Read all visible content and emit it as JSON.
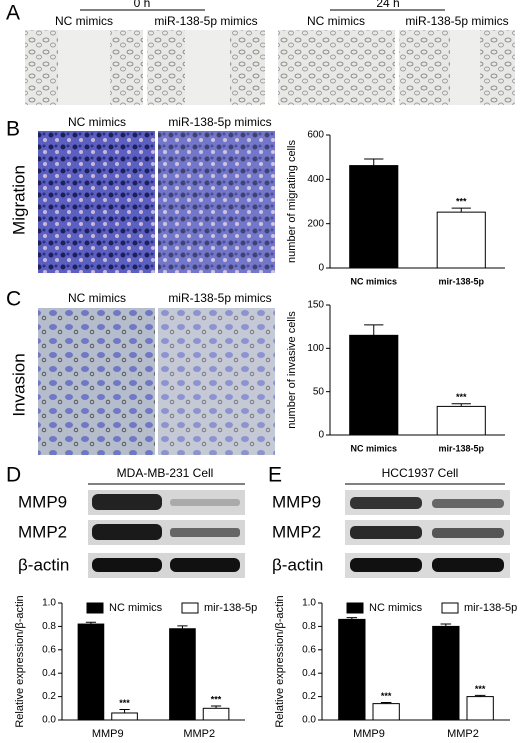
{
  "panels": {
    "A": {
      "letter": "A",
      "timepoints": [
        "0 h",
        "24 h"
      ],
      "labels": [
        "NC mimics",
        "miR-138-5p mimics",
        "NC mimics",
        "miR-138-5p mimics"
      ]
    },
    "B": {
      "letter": "B",
      "row_label": "Migration",
      "labels": [
        "NC mimics",
        "miR-138-5p mimics"
      ]
    },
    "C": {
      "letter": "C",
      "row_label": "Invasion",
      "labels": [
        "NC mimics",
        "miR-138-5p mimics"
      ]
    },
    "D": {
      "letter": "D",
      "cell_line": "MDA-MB-231 Cell",
      "blot_labels": [
        "MMP9",
        "MMP2",
        "β-actin"
      ]
    },
    "E": {
      "letter": "E",
      "cell_line": "HCC1937 Cell",
      "blot_labels": [
        "MMP9",
        "MMP2",
        "β-actin"
      ]
    }
  },
  "chart_data": [
    {
      "type": "bar",
      "ylabel": "number of migrating cells",
      "categories": [
        "NC mimics",
        "mir-138-5p"
      ],
      "ylim": [
        0,
        600
      ],
      "yticks": [
        0,
        200,
        400,
        600
      ],
      "series": [
        {
          "colors": [
            "#000000",
            "#ffffff"
          ],
          "values": [
            462,
            252
          ],
          "errors": [
            30,
            18
          ],
          "annotations": [
            null,
            "***"
          ]
        }
      ]
    },
    {
      "type": "bar",
      "ylabel": "number of invasive cells",
      "categories": [
        "NC mimics",
        "mir-138-5p"
      ],
      "ylim": [
        0,
        150
      ],
      "yticks": [
        0,
        50,
        100,
        150
      ],
      "series": [
        {
          "colors": [
            "#000000",
            "#ffffff"
          ],
          "values": [
            115,
            33
          ],
          "errors": [
            12,
            3
          ],
          "annotations": [
            null,
            "***"
          ]
        }
      ]
    },
    {
      "type": "bar",
      "ylabel": "Relative expression/β-actin",
      "categories": [
        "MMP9",
        "MMP2"
      ],
      "ylim": [
        0,
        1
      ],
      "yticks": [
        {
          "value": 0,
          "label": "0.0"
        },
        0.2,
        0.4,
        0.6,
        0.8,
        {
          "value": 1,
          "label": "1.0"
        }
      ],
      "series": [
        {
          "name": "NC mimics",
          "color": "#000000",
          "values": [
            0.82,
            0.78
          ],
          "errors": [
            0.015,
            0.025
          ]
        },
        {
          "name": "mir-138-5p",
          "color": "#ffffff",
          "values": [
            0.06,
            0.1
          ],
          "errors": [
            0.03,
            0.02
          ],
          "annotations": [
            "***",
            "***"
          ]
        }
      ]
    },
    {
      "type": "bar",
      "ylabel": "Relative expression/β-actin",
      "categories": [
        "MMP9",
        "MMP2"
      ],
      "ylim": [
        0,
        1
      ],
      "yticks": [
        {
          "value": 0,
          "label": "0.0"
        },
        0.2,
        0.4,
        0.6,
        0.8,
        {
          "value": 1,
          "label": "1.0"
        }
      ],
      "series": [
        {
          "name": "NC mimics",
          "color": "#000000",
          "values": [
            0.86,
            0.8
          ],
          "errors": [
            0.015,
            0.02
          ]
        },
        {
          "name": "mir-138-5p",
          "color": "#ffffff",
          "values": [
            0.14,
            0.2
          ],
          "errors": [
            0.01,
            0.01
          ],
          "annotations": [
            "***",
            "***"
          ]
        }
      ]
    }
  ]
}
